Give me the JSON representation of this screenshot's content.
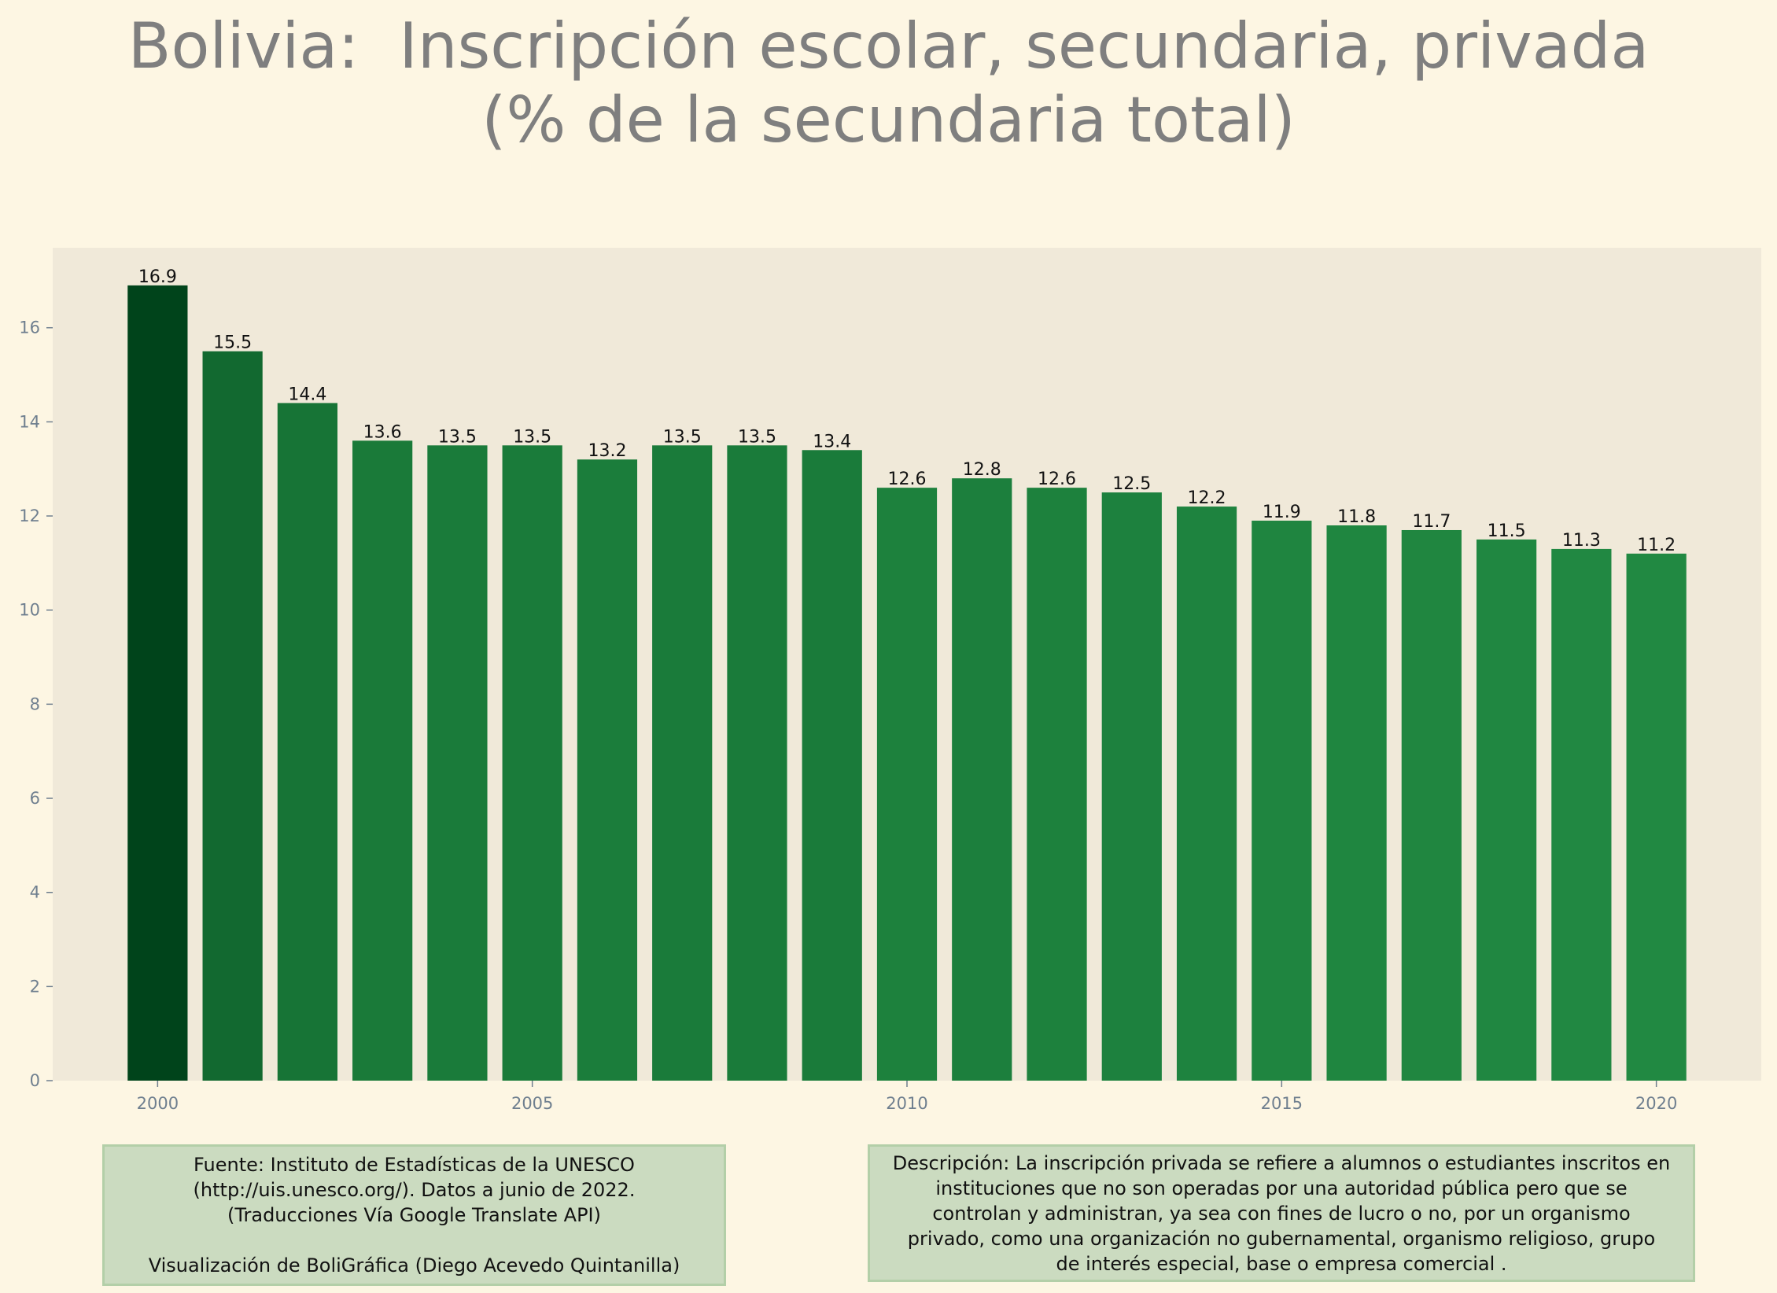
{
  "title": {
    "line1": "Bolivia:  Inscripción escolar, secundaria, privada",
    "line2": "(% de la secundaria total)"
  },
  "chart_data": {
    "type": "bar",
    "x": [
      2000,
      2001,
      2002,
      2003,
      2004,
      2005,
      2006,
      2007,
      2008,
      2009,
      2010,
      2011,
      2012,
      2013,
      2014,
      2015,
      2016,
      2017,
      2018,
      2019,
      2020
    ],
    "values": [
      16.9,
      15.5,
      14.4,
      13.6,
      13.5,
      13.5,
      13.2,
      13.5,
      13.5,
      13.4,
      12.6,
      12.8,
      12.6,
      12.5,
      12.2,
      11.9,
      11.8,
      11.7,
      11.5,
      11.3,
      11.2
    ],
    "value_labels": [
      "16.9",
      "15.5",
      "14.4",
      "13.6",
      "13.5",
      "13.5",
      "13.2",
      "13.5",
      "13.5",
      "13.4",
      "12.6",
      "12.8",
      "12.6",
      "12.5",
      "12.2",
      "11.9",
      "11.8",
      "11.7",
      "11.5",
      "11.3",
      "11.2"
    ],
    "xticks": [
      "2000",
      "2005",
      "2010",
      "2015",
      "2020"
    ],
    "yticks": [
      "0",
      "2",
      "4",
      "6",
      "8",
      "10",
      "12",
      "14",
      "16"
    ],
    "ylim": [
      0,
      17.7
    ],
    "xlim": [
      1998.6,
      2021.4
    ],
    "grid": false,
    "colors": {
      "background": "#fdf6e3",
      "plot_background": "#f0e9d9",
      "bar_dark": "#00441b",
      "bar_light": "#218942",
      "tick_text": "#6f7f8f"
    }
  },
  "source_box": {
    "lines": [
      "Fuente: Instituto de Estadísticas de la UNESCO",
      "(http://uis.unesco.org/). Datos a junio de 2022.",
      "(Traducciones Vía Google Translate API)",
      "",
      "Visualización de BoliGráfica (Diego Acevedo Quintanilla)"
    ]
  },
  "description_box": {
    "lines": [
      "Descripción: La inscripción privada se refiere a alumnos o estudiantes inscritos en",
      "instituciones que no son operadas por una autoridad pública pero que se",
      "controlan y administran, ya sea con fines de lucro o no, por un organismo",
      "privado, como una organización no gubernamental, organismo religioso, grupo",
      "de interés especial, base o empresa comercial ."
    ]
  }
}
